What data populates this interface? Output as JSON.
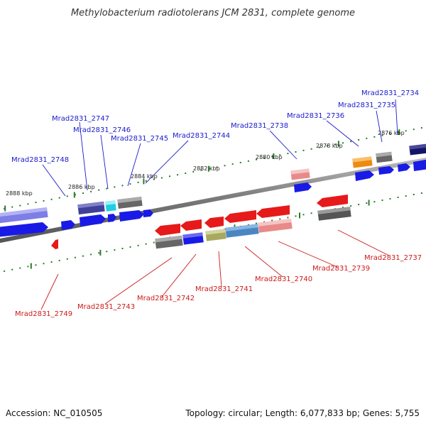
{
  "title": "Methylobacterium radiotolerans JCM 2831, complete genome",
  "footer": {
    "accession": "Accession: NC_010505",
    "summary": "Topology: circular; Length: 6,077,833 bp; Genes: 5,755"
  },
  "colors": {
    "backbone": "#888888",
    "top_label": "#1a1acc",
    "bottom_label": "#cc1a1a",
    "tick": "#2a7a2a"
  },
  "scale_labels": [
    "2888 kbp",
    "2886 kbp",
    "2884 kbp",
    "2882 kbp",
    "2880 kbp",
    "2878 kbp",
    "2876 kbp"
  ],
  "top_gene_labels": [
    "Mrad2831_2734",
    "Mrad2831_2735",
    "Mrad2831_2736",
    "Mrad2831_2738",
    "Mrad2831_2744",
    "Mrad2831_2745",
    "Mrad2831_2746",
    "Mrad2831_2747",
    "Mrad2831_2748"
  ],
  "bottom_gene_labels": [
    "Mrad2831_2737",
    "Mrad2831_2739",
    "Mrad2831_2740",
    "Mrad2831_2741",
    "Mrad2831_2742",
    "Mrad2831_2743",
    "Mrad2831_2749"
  ]
}
